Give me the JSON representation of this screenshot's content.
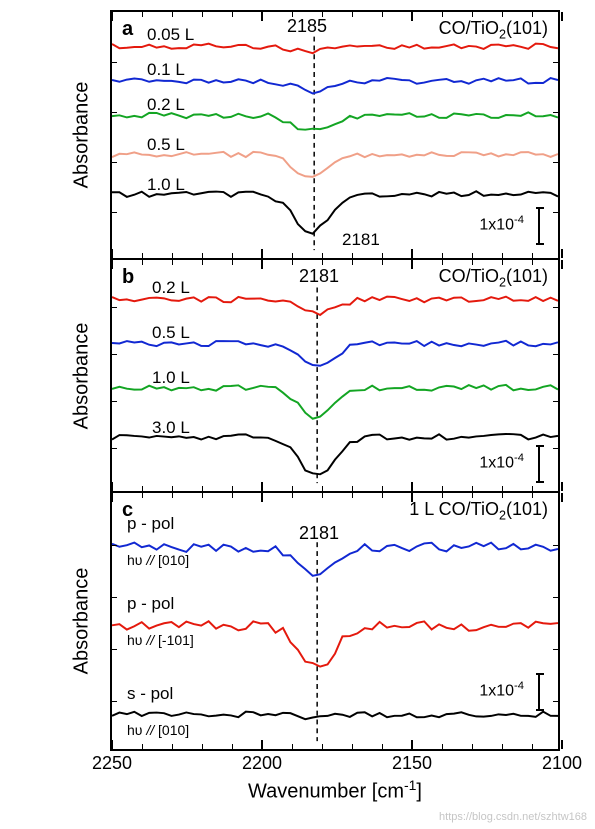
{
  "axis": {
    "x_label": "Wavenumber [cm",
    "x_label_sup": "-1",
    "x_label_end": "]",
    "y_label": "Absorbance",
    "x_min": 2100,
    "x_max": 2250,
    "x_ticks": [
      2250,
      2200,
      2150,
      2100
    ]
  },
  "panels": {
    "a": {
      "letter": "a",
      "title_prefix": "CO/TiO",
      "title_sub": "2",
      "title_suffix": "(101)",
      "peak_label": "2185",
      "peak_x": 2185,
      "bottom_label": "2181",
      "dashed_x": 2182,
      "scale_text": "1x10",
      "scale_sup": "-4",
      "series": [
        {
          "label": "0.05 L",
          "color": "#e4190d",
          "offset": 35
        },
        {
          "label": "0.1 L",
          "color": "#1128d2",
          "offset": 70
        },
        {
          "label": "0.2 L",
          "color": "#13a523",
          "offset": 105
        },
        {
          "label": "0.5 L",
          "color": "#f0a088",
          "offset": 145
        },
        {
          "label": "1.0 L",
          "color": "#000000",
          "offset": 185
        }
      ]
    },
    "b": {
      "letter": "b",
      "title_prefix": "CO/TiO",
      "title_sub": "2",
      "title_suffix": "(101)",
      "peak_label": "2181",
      "peak_x": 2181,
      "dashed_x": 2181,
      "scale_text": "1x10",
      "scale_sup": "-4",
      "series": [
        {
          "label": "0.2 L",
          "color": "#e4190d",
          "offset": 40
        },
        {
          "label": "0.5 L",
          "color": "#1128d2",
          "offset": 85
        },
        {
          "label": "1.0 L",
          "color": "#13a523",
          "offset": 130
        },
        {
          "label": "3.0 L",
          "color": "#000000",
          "offset": 180
        }
      ]
    },
    "c": {
      "letter": "c",
      "title_prefix": "1 L CO/TiO",
      "title_sub": "2",
      "title_suffix": "(101)",
      "peak_label": "2181",
      "peak_x": 2181,
      "dashed_x": 2181,
      "scale_text": "1x10",
      "scale_sup": "-4",
      "series": [
        {
          "label": "p - pol",
          "sublabel_pre": "hυ ",
          "sublabel_slash": "//",
          "sublabel_dir": " [010]",
          "color": "#1128d2",
          "offset": 55
        },
        {
          "label": "p - pol",
          "sublabel_pre": "hυ ",
          "sublabel_slash": "//",
          "sublabel_dir": " [-101]",
          "color": "#e4190d",
          "offset": 135
        },
        {
          "label": "s - pol",
          "sublabel_pre": "hυ ",
          "sublabel_slash": "//",
          "sublabel_dir": " [010]",
          "color": "#000000",
          "offset": 225
        }
      ]
    }
  },
  "style": {
    "line_width": 2,
    "dash_pattern": "5,4",
    "noise_amp": 3
  },
  "watermark": "https://blog.csdn.net/szhtw168"
}
